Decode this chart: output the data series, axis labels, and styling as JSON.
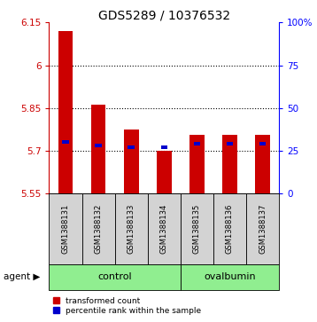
{
  "title": "GDS5289 / 10376532",
  "samples": [
    "GSM1388131",
    "GSM1388132",
    "GSM1388133",
    "GSM1388134",
    "GSM1388135",
    "GSM1388136",
    "GSM1388137"
  ],
  "transformed_counts": [
    6.12,
    5.86,
    5.775,
    5.7,
    5.755,
    5.755,
    5.755
  ],
  "percentile_ranks": [
    30,
    28,
    27,
    27,
    29,
    29,
    29
  ],
  "ylim_left": [
    5.55,
    6.15
  ],
  "yticks_left": [
    5.55,
    5.7,
    5.85,
    6.0,
    6.15
  ],
  "ytick_labels_left": [
    "5.55",
    "5.7",
    "5.85",
    "6",
    "6.15"
  ],
  "ylim_right": [
    0,
    100
  ],
  "yticks_right": [
    0,
    25,
    50,
    75,
    100
  ],
  "ytick_labels_right": [
    "0",
    "25",
    "50",
    "75",
    "100%"
  ],
  "bar_bottom": 5.55,
  "red_color": "#cc0000",
  "blue_color": "#0000cc",
  "control_samples": [
    0,
    1,
    2,
    3
  ],
  "ovalbumin_samples": [
    4,
    5,
    6
  ],
  "control_label": "control",
  "ovalbumin_label": "ovalbumin",
  "agent_label": "agent",
  "legend_red": "transformed count",
  "legend_blue": "percentile rank within the sample",
  "group_color": "#90ee90",
  "sample_box_color": "#d3d3d3",
  "title_fontsize": 10,
  "tick_fontsize": 7.5,
  "grid_yticks": [
    5.7,
    5.85,
    6.0
  ]
}
